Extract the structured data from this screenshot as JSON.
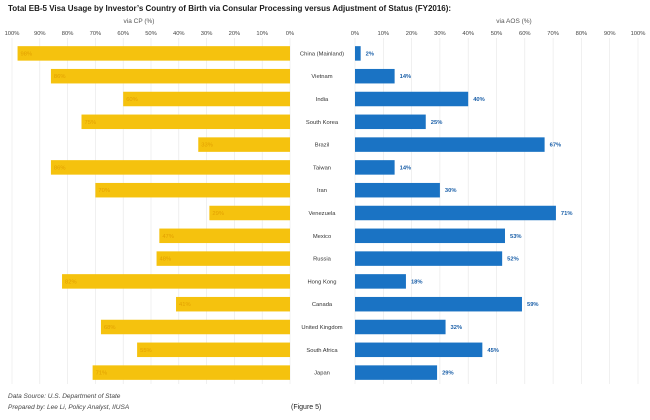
{
  "title": "Total EB-5 Visa Usage by Investor’s Country of Birth via Consular Processing versus Adjustment of Status (FY2016):",
  "footer": {
    "source": "Data Source: U.S. Department of State",
    "prepared_by": "Prepared by: Lee Li, Policy Analyst, IIUSA",
    "figure": "(Figure 5)"
  },
  "colors": {
    "cp_bar": "#F5C20E",
    "aos_bar": "#1A73C4",
    "cp_label": "#E2A000",
    "aos_label": "#1A5FA8"
  },
  "chart_data": [
    {
      "type": "bar",
      "orientation": "horizontal",
      "direction": "reversed",
      "axis_label": "via CP (%)",
      "xlim": [
        0,
        100
      ],
      "ticks": [
        "100%",
        "90%",
        "80%",
        "70%",
        "60%",
        "50%",
        "40%",
        "30%",
        "20%",
        "10%",
        "0%"
      ],
      "categories": [
        "China (Mainland)",
        "Vietnam",
        "India",
        "South Korea",
        "Brazil",
        "Taiwan",
        "Iran",
        "Venezuela",
        "Mexico",
        "Russia",
        "Hong Kong",
        "Canada",
        "United Kingdom",
        "South Africa",
        "Japan"
      ],
      "values": [
        98,
        86,
        60,
        75,
        33,
        86,
        70,
        29,
        47,
        48,
        82,
        41,
        68,
        55,
        71
      ],
      "labels": [
        "98%",
        "86%",
        "60%",
        "75%",
        "33%",
        "86%",
        "70%",
        "29%",
        "47%",
        "48%",
        "82%",
        "41%",
        "68%",
        "55%",
        "71%"
      ]
    },
    {
      "type": "bar",
      "orientation": "horizontal",
      "axis_label": "via AOS (%)",
      "xlim": [
        0,
        100
      ],
      "ticks": [
        "0%",
        "10%",
        "20%",
        "30%",
        "40%",
        "50%",
        "60%",
        "70%",
        "80%",
        "90%",
        "100%"
      ],
      "categories": [
        "China (Mainland)",
        "Vietnam",
        "India",
        "South Korea",
        "Brazil",
        "Taiwan",
        "Iran",
        "Venezuela",
        "Mexico",
        "Russia",
        "Hong Kong",
        "Canada",
        "United Kingdom",
        "South Africa",
        "Japan"
      ],
      "values": [
        2,
        14,
        40,
        25,
        67,
        14,
        30,
        71,
        53,
        52,
        18,
        59,
        32,
        45,
        29
      ],
      "labels": [
        "2%",
        "14%",
        "40%",
        "25%",
        "67%",
        "14%",
        "30%",
        "71%",
        "53%",
        "52%",
        "18%",
        "59%",
        "32%",
        "45%",
        "29%"
      ]
    }
  ]
}
